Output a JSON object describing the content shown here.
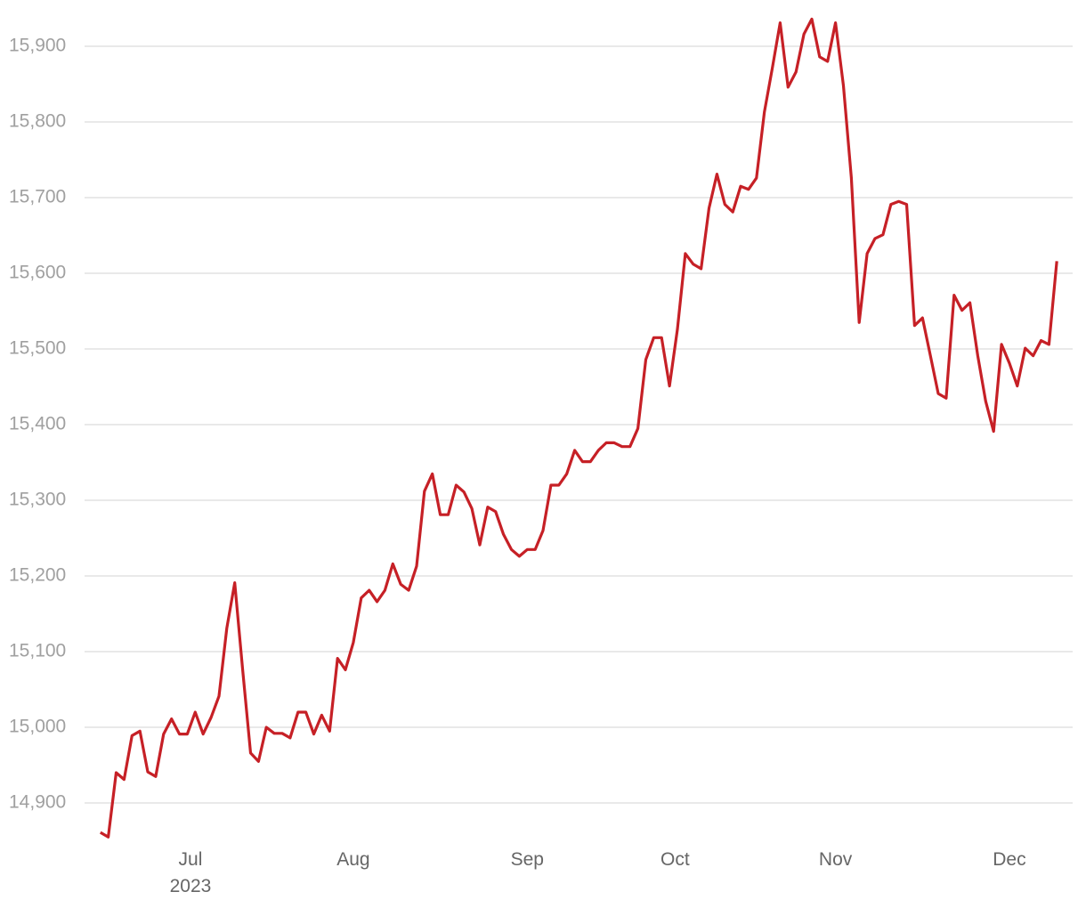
{
  "chart_data": {
    "type": "line",
    "categories": [
      null,
      null,
      null,
      null,
      null,
      null,
      null,
      null,
      null,
      null,
      null,
      null,
      null,
      null,
      null,
      null,
      null,
      null,
      null,
      null,
      null,
      null,
      null,
      null,
      null,
      null,
      null,
      null,
      null,
      null,
      null,
      null,
      null,
      null,
      null,
      null,
      null,
      null,
      null,
      null,
      null,
      null,
      null,
      null,
      null,
      null,
      null,
      null,
      null,
      null,
      null,
      null,
      null,
      null,
      null,
      null,
      null,
      null,
      null,
      null,
      null,
      null,
      null,
      null,
      null,
      null,
      null,
      null,
      null,
      null,
      null,
      null,
      null,
      null,
      null,
      null,
      null,
      null,
      null,
      null,
      null,
      null,
      null,
      null,
      null,
      null,
      null,
      null,
      null,
      null,
      null,
      null,
      null,
      null,
      null,
      null,
      null,
      null,
      null,
      null,
      null,
      null,
      null,
      null,
      null,
      null,
      null,
      null,
      null,
      null,
      null,
      null,
      null,
      null,
      null,
      null,
      null,
      null,
      null,
      null,
      null,
      null
    ],
    "series": [
      {
        "color": "#c62026",
        "values": [
          14861,
          14855,
          14940,
          14931,
          14989,
          14995,
          14941,
          14935,
          14991,
          15011,
          14991,
          14991,
          15020,
          14991,
          15013,
          15041,
          15131,
          15191,
          15076,
          14966,
          14955,
          15000,
          14992,
          14992,
          14986,
          15020,
          15020,
          14991,
          15016,
          14995,
          15091,
          15076,
          15112,
          15171,
          15181,
          15166,
          15181,
          15216,
          15189,
          15181,
          15213,
          15312,
          15335,
          15281,
          15281,
          15320,
          15311,
          15289,
          15241,
          15291,
          15285,
          15255,
          15235,
          15226,
          15235,
          15235,
          15260,
          15320,
          15320,
          15335,
          15366,
          15351,
          15351,
          15366,
          15376,
          15376,
          15371,
          15371,
          15395,
          15486,
          15515,
          15515,
          15451,
          15526,
          15626,
          15612,
          15606,
          15686,
          15731,
          15691,
          15681,
          15715,
          15711,
          15726,
          15813,
          15871,
          15931,
          15846,
          15866,
          15916,
          15936,
          15886,
          15880,
          15931,
          15848,
          15726,
          15535,
          15626,
          15646,
          15651,
          15691,
          15695,
          15691,
          15531,
          15541,
          15491,
          15441,
          15435,
          15571,
          15551,
          15561,
          15491,
          15431,
          15391,
          15506,
          15481,
          15451,
          15501,
          15491,
          15511,
          15506,
          15616
        ]
      }
    ],
    "xlim": [
      -2,
      123
    ],
    "xticks": [
      {
        "value": 11.4,
        "label": "Jul\n2023"
      },
      {
        "value": 32,
        "label": "Aug"
      },
      {
        "value": 54,
        "label": "Sep"
      },
      {
        "value": 72.7,
        "label": "Oct"
      },
      {
        "value": 93,
        "label": "Nov"
      },
      {
        "value": 115,
        "label": "Dec"
      }
    ],
    "ylim": [
      14850,
      15960
    ],
    "yticks": [
      {
        "value": 14900,
        "label": "14,900"
      },
      {
        "value": 15000,
        "label": "15,000"
      },
      {
        "value": 15100,
        "label": "15,100"
      },
      {
        "value": 15200,
        "label": "15,200"
      },
      {
        "value": 15300,
        "label": "15,300"
      },
      {
        "value": 15400,
        "label": "15,400"
      },
      {
        "value": 15500,
        "label": "15,500"
      },
      {
        "value": 15600,
        "label": "15,600"
      },
      {
        "value": 15700,
        "label": "15,700"
      },
      {
        "value": 15800,
        "label": "15,800"
      },
      {
        "value": 15900,
        "label": "15,900"
      }
    ],
    "grid": true
  }
}
